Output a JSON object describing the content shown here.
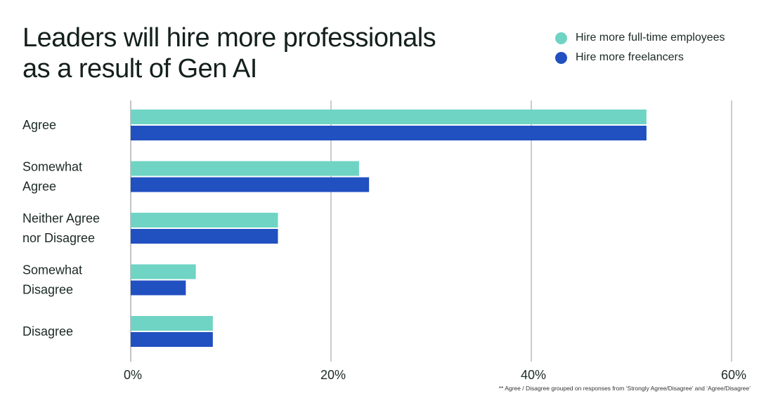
{
  "title_lines": [
    "Leaders will hire more professionals",
    "as a result of Gen AI"
  ],
  "legend": [
    {
      "label": "Hire more full-time employees",
      "color": "#6fd4c4"
    },
    {
      "label": "Hire more freelancers",
      "color": "#2150c0"
    }
  ],
  "footnote": "** Agree / Disagree grouped on responses from ‘Strongly Agree/Disagree’ and ‘Agree/Disagree’",
  "chart_data": {
    "type": "bar",
    "orientation": "horizontal",
    "title": "Leaders will hire more professionals as a result of Gen AI",
    "categories": [
      [
        "Agree"
      ],
      [
        "Somewhat",
        "Agree"
      ],
      [
        "Neither Agree",
        "nor Disagree"
      ],
      [
        "Somewhat",
        "Disagree"
      ],
      [
        "Disagree"
      ]
    ],
    "series": [
      {
        "name": "Hire more full-time employees",
        "color": "#6fd4c4",
        "values": [
          51.5,
          22.8,
          14.7,
          6.5,
          8.2
        ]
      },
      {
        "name": "Hire more freelancers",
        "color": "#2150c0",
        "values": [
          51.5,
          23.8,
          14.7,
          5.5,
          8.2
        ]
      }
    ],
    "xlim": [
      0,
      60
    ],
    "xticks": [
      0,
      20,
      40,
      60
    ],
    "tick_format": "{v}%",
    "grid": true,
    "legend_position": "top-right"
  }
}
